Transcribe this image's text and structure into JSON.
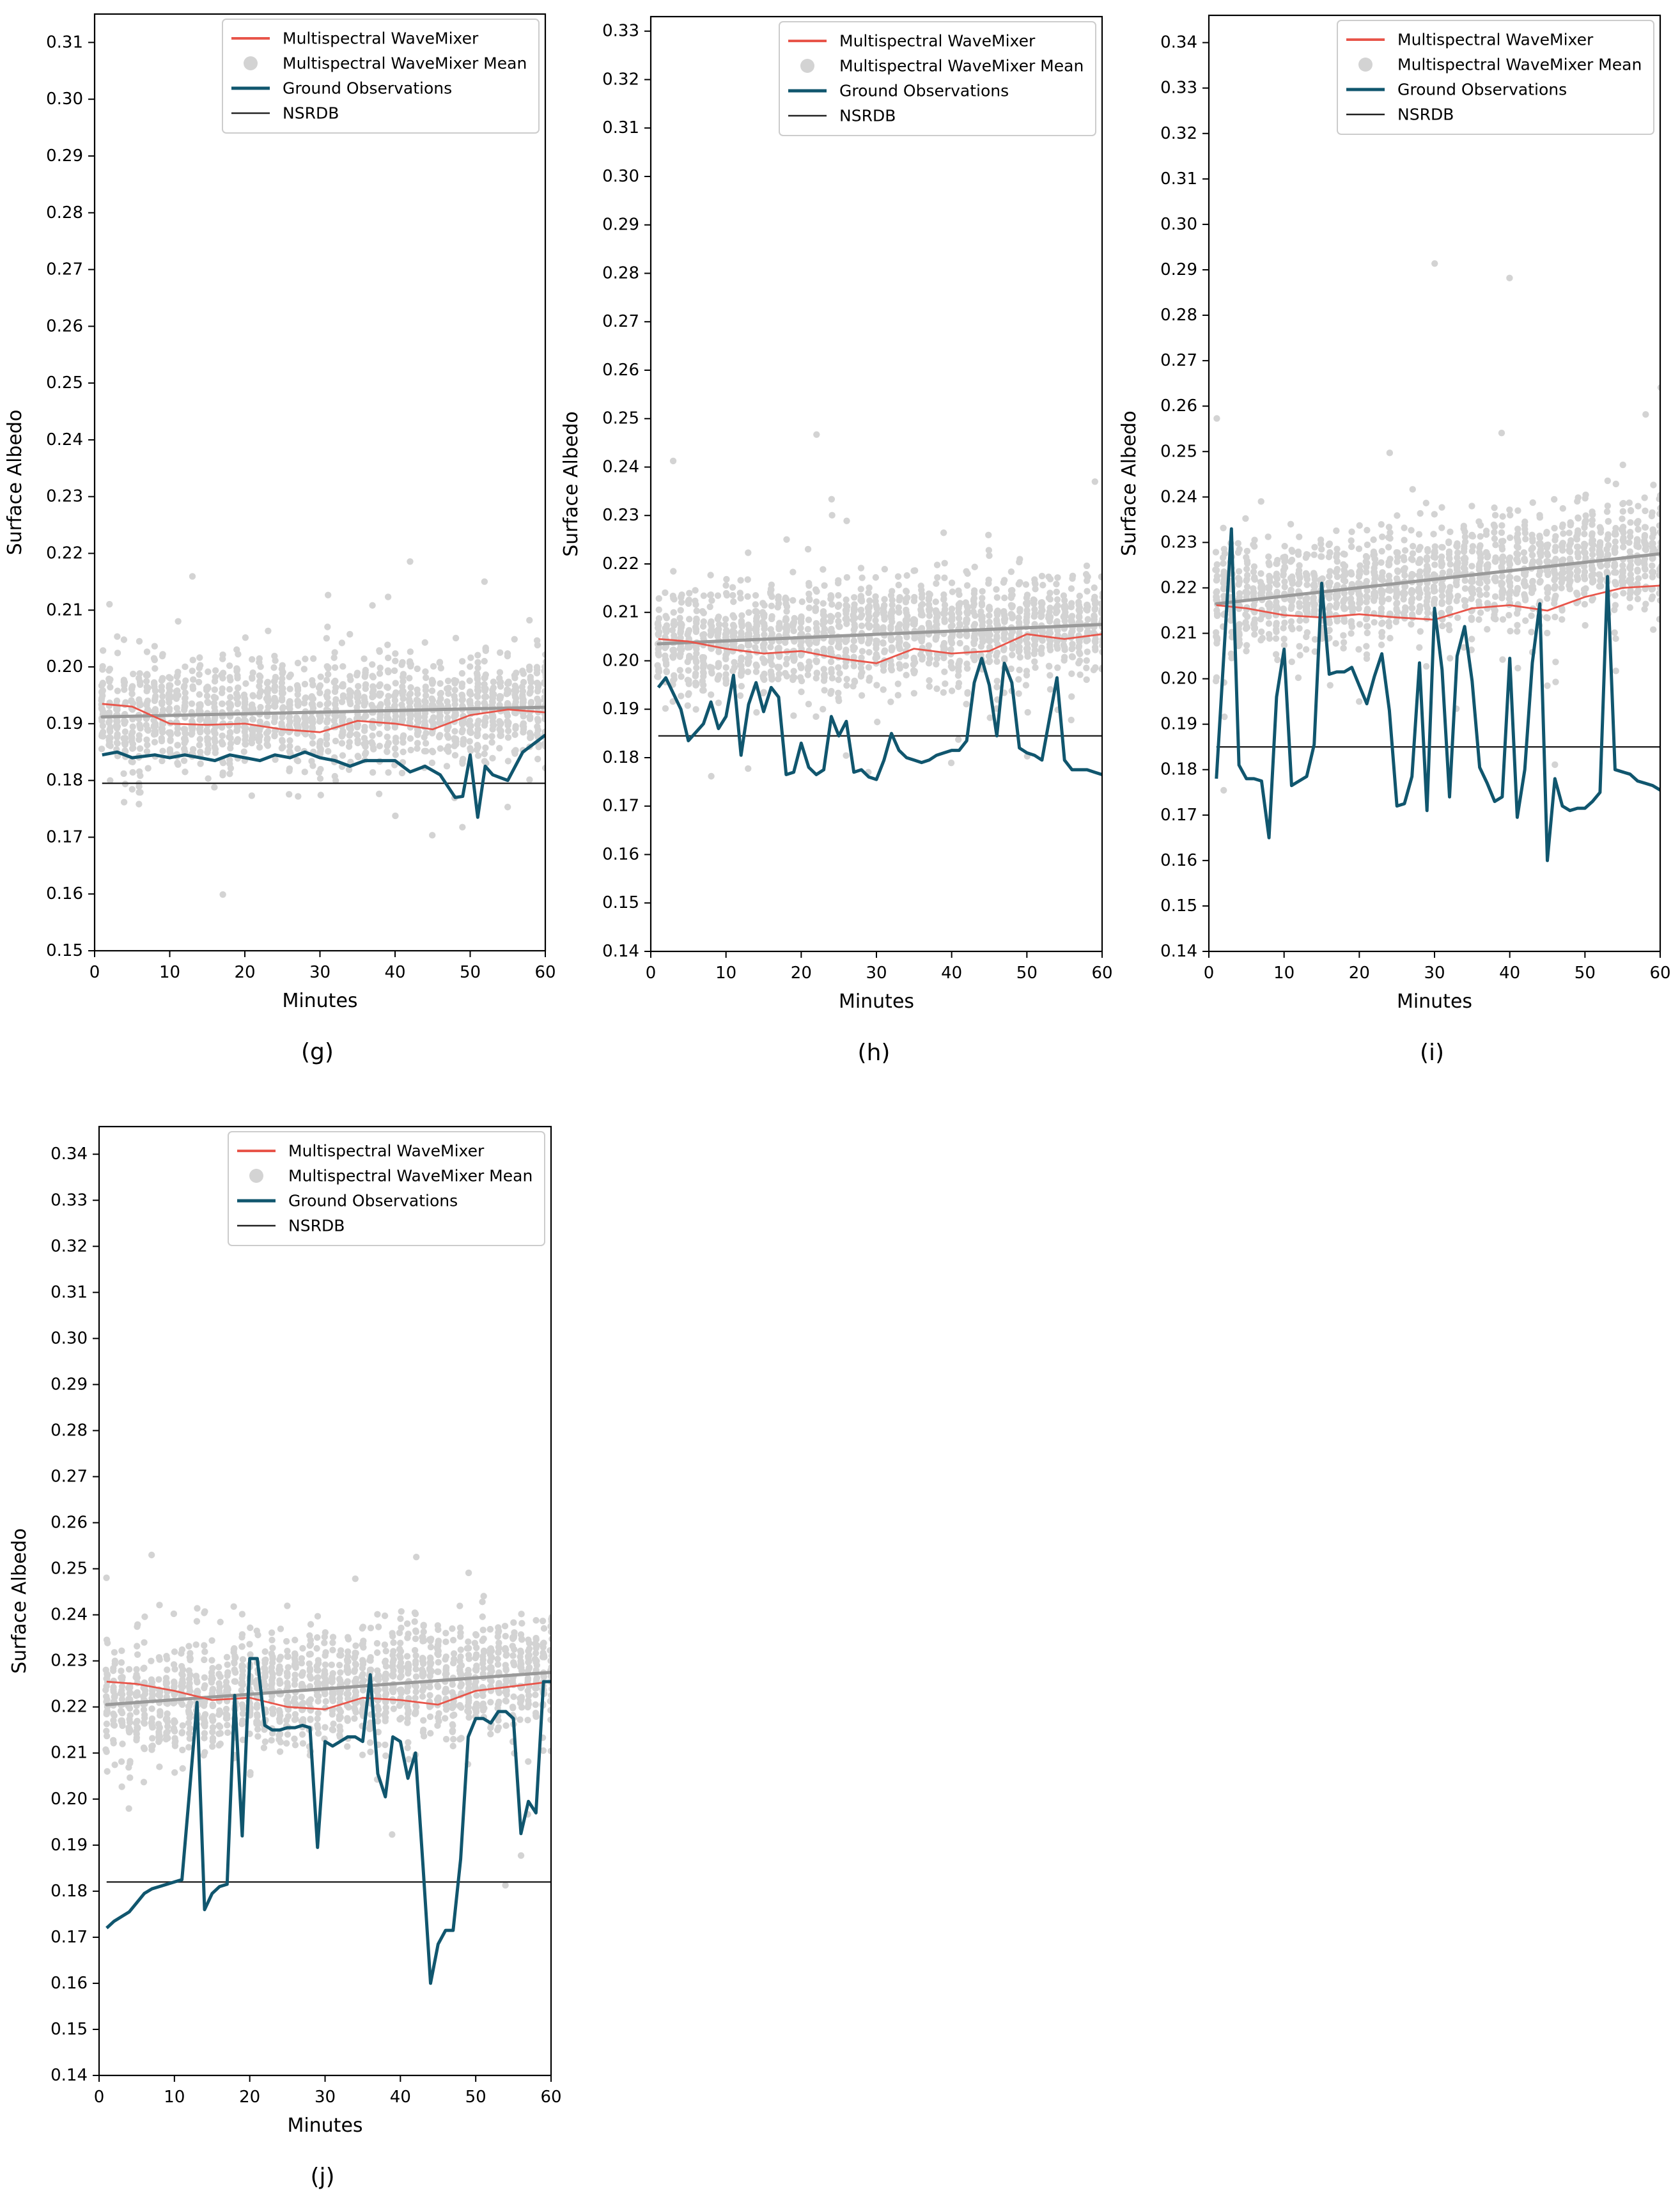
{
  "colors": {
    "model": "#e8554a",
    "scatter": "#d3d3d3",
    "mean": "#9a9a9a",
    "ground": "#10566e",
    "nsrdb": "#222222",
    "axis": "#000000"
  },
  "chart_data": [
    {
      "panel": "(g)",
      "type": "line",
      "title": "",
      "xlabel": "Minutes",
      "ylabel": "Surface Albedo",
      "xlim": [
        0,
        60
      ],
      "ylim": [
        0.15,
        0.315
      ],
      "xticks": [
        0,
        10,
        20,
        30,
        40,
        50,
        60
      ],
      "yticks": [
        0.15,
        0.16,
        0.17,
        0.18,
        0.19,
        0.2,
        0.21,
        0.22,
        0.23,
        0.24,
        0.25,
        0.26,
        0.27,
        0.28,
        0.29,
        0.3,
        0.31
      ],
      "legend_position": "top-right",
      "legend": [
        "Multispectral WaveMixer",
        "Multispectral WaveMixer Mean",
        "Ground Observations",
        "NSRDB"
      ],
      "nsrdb": 0.1795,
      "mean_line": [
        0.1912,
        0.1929
      ],
      "scatter": {
        "center_start": 0.191,
        "center_end": 0.193,
        "spread": 0.0065
      },
      "series": [
        {
          "name": "Multispectral WaveMixer",
          "x": [
            1,
            5,
            10,
            15,
            20,
            25,
            30,
            35,
            40,
            45,
            50,
            55,
            60
          ],
          "values": [
            0.1935,
            0.193,
            0.19,
            0.1898,
            0.19,
            0.189,
            0.1885,
            0.1905,
            0.19,
            0.189,
            0.1915,
            0.1925,
            0.192
          ]
        },
        {
          "name": "Ground Observations",
          "x": [
            1,
            3,
            5,
            8,
            10,
            12,
            14,
            16,
            18,
            20,
            22,
            24,
            26,
            28,
            30,
            32,
            34,
            36,
            38,
            40,
            42,
            44,
            46,
            48,
            49,
            50,
            51,
            52,
            53,
            55,
            57,
            59,
            60
          ],
          "values": [
            0.1845,
            0.185,
            0.184,
            0.1845,
            0.184,
            0.1845,
            0.184,
            0.1835,
            0.1845,
            0.184,
            0.1835,
            0.1845,
            0.184,
            0.185,
            0.184,
            0.1835,
            0.1825,
            0.1835,
            0.1835,
            0.1835,
            0.1815,
            0.1825,
            0.181,
            0.177,
            0.1772,
            0.1845,
            0.1735,
            0.1825,
            0.181,
            0.18,
            0.185,
            0.187,
            0.188
          ]
        }
      ]
    },
    {
      "panel": "(h)",
      "type": "line",
      "title": "",
      "xlabel": "Minutes",
      "ylabel": "Surface Albedo",
      "xlim": [
        0,
        60
      ],
      "ylim": [
        0.14,
        0.333
      ],
      "xticks": [
        0,
        10,
        20,
        30,
        40,
        50,
        60
      ],
      "yticks": [
        0.14,
        0.15,
        0.16,
        0.17,
        0.18,
        0.19,
        0.2,
        0.21,
        0.22,
        0.23,
        0.24,
        0.25,
        0.26,
        0.27,
        0.28,
        0.29,
        0.3,
        0.31,
        0.32,
        0.33
      ],
      "legend_position": "top-right",
      "legend": [
        "Multispectral WaveMixer",
        "Multispectral WaveMixer Mean",
        "Ground Observations",
        "NSRDB"
      ],
      "nsrdb": 0.1845,
      "mean_line": [
        0.2035,
        0.2075
      ],
      "scatter": {
        "center_start": 0.2035,
        "center_end": 0.2075,
        "spread": 0.0075
      },
      "series": [
        {
          "name": "Multispectral WaveMixer",
          "x": [
            1,
            5,
            10,
            15,
            20,
            25,
            30,
            35,
            40,
            45,
            50,
            55,
            60
          ],
          "values": [
            0.2045,
            0.204,
            0.2025,
            0.2015,
            0.202,
            0.2005,
            0.1995,
            0.2025,
            0.2015,
            0.202,
            0.2055,
            0.2045,
            0.2055
          ]
        },
        {
          "name": "Ground Observations",
          "x": [
            1,
            2,
            4,
            5,
            7,
            8,
            9,
            10,
            11,
            12,
            13,
            14,
            15,
            16,
            17,
            18,
            19,
            20,
            21,
            22,
            23,
            24,
            25,
            26,
            27,
            28,
            29,
            30,
            31,
            32,
            33,
            34,
            35,
            36,
            37,
            38,
            39,
            40,
            41,
            42,
            43,
            44,
            45,
            46,
            47,
            48,
            49,
            50,
            51,
            52,
            53,
            54,
            55,
            56,
            57,
            58,
            59,
            60
          ],
          "values": [
            0.1945,
            0.1965,
            0.19,
            0.1835,
            0.187,
            0.1915,
            0.186,
            0.1885,
            0.197,
            0.1805,
            0.191,
            0.1955,
            0.1895,
            0.1945,
            0.1925,
            0.1765,
            0.177,
            0.183,
            0.178,
            0.1765,
            0.1775,
            0.1885,
            0.1845,
            0.1875,
            0.177,
            0.1775,
            0.176,
            0.1755,
            0.1795,
            0.185,
            0.1815,
            0.18,
            0.1795,
            0.179,
            0.1795,
            0.1805,
            0.181,
            0.1815,
            0.1815,
            0.1835,
            0.1955,
            0.2005,
            0.195,
            0.1845,
            0.1995,
            0.1955,
            0.182,
            0.181,
            0.1805,
            0.1795,
            0.188,
            0.1965,
            0.1795,
            0.1775,
            0.1775,
            0.1775,
            0.177,
            0.1765
          ]
        }
      ]
    },
    {
      "panel": "(i)",
      "type": "line",
      "title": "",
      "xlabel": "Minutes",
      "ylabel": "Surface Albedo",
      "xlim": [
        0,
        60
      ],
      "ylim": [
        0.14,
        0.346
      ],
      "xticks": [
        0,
        10,
        20,
        30,
        40,
        50,
        60
      ],
      "yticks": [
        0.14,
        0.15,
        0.16,
        0.17,
        0.18,
        0.19,
        0.2,
        0.21,
        0.22,
        0.23,
        0.24,
        0.25,
        0.26,
        0.27,
        0.28,
        0.29,
        0.3,
        0.31,
        0.32,
        0.33,
        0.34
      ],
      "legend_position": "top-right",
      "legend": [
        "Multispectral WaveMixer",
        "Multispectral WaveMixer Mean",
        "Ground Observations",
        "NSRDB"
      ],
      "nsrdb": 0.185,
      "mean_line": [
        0.2165,
        0.2275
      ],
      "scatter": {
        "center_start": 0.2165,
        "center_end": 0.2275,
        "spread": 0.0085
      },
      "series": [
        {
          "name": "Multispectral WaveMixer",
          "x": [
            1,
            5,
            10,
            15,
            20,
            25,
            30,
            35,
            40,
            45,
            50,
            55,
            60
          ],
          "values": [
            0.2162,
            0.2155,
            0.214,
            0.2135,
            0.2142,
            0.2135,
            0.213,
            0.2155,
            0.2162,
            0.215,
            0.218,
            0.22,
            0.2205
          ]
        },
        {
          "name": "Ground Observations",
          "x": [
            1,
            3,
            4,
            5,
            6,
            7,
            8,
            9,
            10,
            11,
            12,
            13,
            14,
            15,
            16,
            17,
            18,
            19,
            20,
            21,
            22,
            23,
            24,
            25,
            26,
            27,
            28,
            29,
            30,
            31,
            32,
            33,
            34,
            35,
            36,
            37,
            38,
            39,
            40,
            41,
            42,
            43,
            44,
            45,
            46,
            47,
            48,
            49,
            50,
            51,
            52,
            53,
            54,
            55,
            56,
            57,
            58,
            59,
            60
          ],
          "values": [
            0.178,
            0.233,
            0.181,
            0.178,
            0.178,
            0.1775,
            0.165,
            0.196,
            0.2065,
            0.1765,
            0.1775,
            0.1785,
            0.1855,
            0.221,
            0.201,
            0.2015,
            0.2015,
            0.2025,
            0.1985,
            0.1945,
            0.2005,
            0.2055,
            0.193,
            0.172,
            0.1725,
            0.1785,
            0.2035,
            0.171,
            0.2155,
            0.202,
            0.174,
            0.205,
            0.2115,
            0.1995,
            0.1805,
            0.177,
            0.173,
            0.174,
            0.2045,
            0.1695,
            0.18,
            0.2035,
            0.2165,
            0.16,
            0.178,
            0.172,
            0.171,
            0.1715,
            0.1715,
            0.173,
            0.175,
            0.2225,
            0.18,
            0.1795,
            0.179,
            0.1775,
            0.177,
            0.1765,
            0.1755
          ]
        }
      ]
    },
    {
      "panel": "(j)",
      "type": "line",
      "title": "",
      "xlabel": "Minutes",
      "ylabel": "Surface Albedo",
      "xlim": [
        0,
        60
      ],
      "ylim": [
        0.14,
        0.346
      ],
      "xticks": [
        0,
        10,
        20,
        30,
        40,
        50,
        60
      ],
      "yticks": [
        0.14,
        0.15,
        0.16,
        0.17,
        0.18,
        0.19,
        0.2,
        0.21,
        0.22,
        0.23,
        0.24,
        0.25,
        0.26,
        0.27,
        0.28,
        0.29,
        0.3,
        0.31,
        0.32,
        0.33,
        0.34
      ],
      "legend_position": "top-right",
      "legend": [
        "Multispectral WaveMixer",
        "Multispectral WaveMixer Mean",
        "Ground Observations",
        "NSRDB"
      ],
      "nsrdb": 0.182,
      "mean_line": [
        0.2205,
        0.2275
      ],
      "scatter": {
        "center_start": 0.2205,
        "center_end": 0.2275,
        "spread": 0.0085
      },
      "series": [
        {
          "name": "Multispectral WaveMixer",
          "x": [
            1,
            5,
            10,
            15,
            20,
            25,
            30,
            35,
            40,
            45,
            50,
            55,
            60
          ],
          "values": [
            0.2255,
            0.225,
            0.2235,
            0.2215,
            0.222,
            0.22,
            0.2195,
            0.222,
            0.2215,
            0.2205,
            0.2235,
            0.2245,
            0.2255
          ]
        },
        {
          "name": "Ground Observations",
          "x": [
            1,
            2,
            3,
            4,
            5,
            6,
            7,
            8,
            9,
            10,
            11,
            12,
            13,
            14,
            15,
            16,
            17,
            18,
            19,
            20,
            21,
            22,
            23,
            24,
            25,
            26,
            27,
            28,
            29,
            30,
            31,
            32,
            33,
            34,
            35,
            36,
            37,
            38,
            39,
            40,
            41,
            42,
            43,
            44,
            45,
            46,
            47,
            48,
            49,
            50,
            51,
            52,
            53,
            54,
            55,
            56,
            57,
            58,
            59,
            60
          ],
          "values": [
            0.172,
            0.1735,
            0.1745,
            0.1755,
            0.1775,
            0.1795,
            0.1805,
            0.181,
            0.1815,
            0.182,
            0.1825,
            0.2015,
            0.221,
            0.176,
            0.1795,
            0.181,
            0.1815,
            0.2225,
            0.192,
            0.2305,
            0.2305,
            0.216,
            0.215,
            0.215,
            0.2155,
            0.2155,
            0.216,
            0.2155,
            0.1895,
            0.2125,
            0.2115,
            0.2125,
            0.2135,
            0.2135,
            0.2125,
            0.227,
            0.2055,
            0.2005,
            0.2135,
            0.2125,
            0.2045,
            0.21,
            0.1855,
            0.16,
            0.1685,
            0.1715,
            0.1715,
            0.187,
            0.2135,
            0.2175,
            0.2175,
            0.2165,
            0.219,
            0.219,
            0.2175,
            0.1925,
            0.1995,
            0.197,
            0.2255,
            0.2255
          ]
        }
      ]
    }
  ]
}
